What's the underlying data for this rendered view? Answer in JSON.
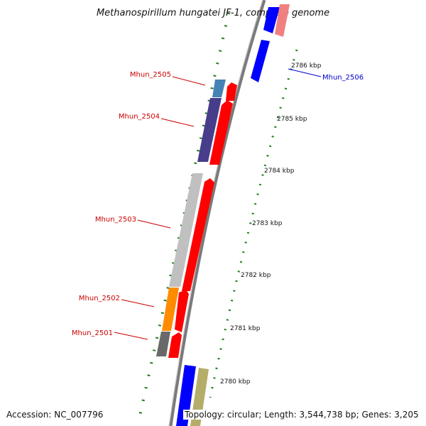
{
  "title": "Methanospirillum hungatei JF-1, complete genome",
  "accession_text": "Accession: NC_007796",
  "topology_text": "Topology: circular; Length: 3,544,738 bp; Genes: 3,205",
  "kbp_ticks": [
    "2786 kbp",
    "2785 kbp",
    "2784 kbp",
    "2783 kbp",
    "2782 kbp",
    "2781 kbp",
    "2780 kbp"
  ],
  "gene_labels": [
    {
      "text": "Mhun_2506",
      "color": "#0000cc"
    },
    {
      "text": "Mhun_2505",
      "color": "#cc0000"
    },
    {
      "text": "Mhun_2504",
      "color": "#cc0000"
    },
    {
      "text": "Mhun_2503",
      "color": "#cc0000"
    },
    {
      "text": "Mhun_2502",
      "color": "#cc0000"
    },
    {
      "text": "Mhun_2501",
      "color": "#cc0000"
    }
  ],
  "colors": {
    "backbone": "#7a7a7a",
    "tick_green": "#1e7e1e",
    "forward_red": "#ff0000",
    "reverse_blue": "#0000ff",
    "pink": "#f08080",
    "khaki": "#b5ad6a",
    "steelblue": "#4682b4",
    "darkslateblue": "#483d8b",
    "silver": "#c0c0c0",
    "orange": "#ff8c00",
    "dimgray": "#696969"
  }
}
